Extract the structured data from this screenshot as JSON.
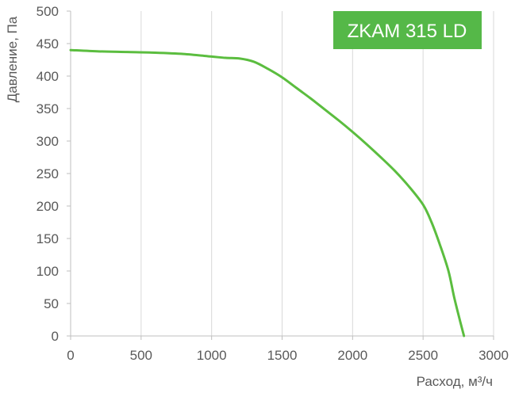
{
  "chart_data": {
    "type": "line",
    "title": "ZKAM 315 LD",
    "xlabel": "Расход, м³/ч",
    "ylabel": "Давление, Па",
    "xlim": [
      0,
      3000
    ],
    "ylim": [
      0,
      500
    ],
    "x_ticks": [
      "0",
      "500",
      "1000",
      "1500",
      "2000",
      "2500",
      "3000"
    ],
    "y_ticks": [
      "0",
      "50",
      "100",
      "150",
      "200",
      "250",
      "300",
      "350",
      "400",
      "450",
      "500"
    ],
    "grid": "vertical",
    "series": [
      {
        "color": "#5bbd3f",
        "points": [
          [
            0,
            440
          ],
          [
            200,
            438
          ],
          [
            400,
            437
          ],
          [
            600,
            436
          ],
          [
            800,
            434
          ],
          [
            1000,
            430
          ],
          [
            1100,
            428
          ],
          [
            1200,
            427
          ],
          [
            1300,
            422
          ],
          [
            1400,
            411
          ],
          [
            1500,
            398
          ],
          [
            1600,
            382
          ],
          [
            1700,
            366
          ],
          [
            1800,
            349
          ],
          [
            1900,
            332
          ],
          [
            2000,
            314
          ],
          [
            2100,
            295
          ],
          [
            2200,
            275
          ],
          [
            2300,
            254
          ],
          [
            2400,
            230
          ],
          [
            2500,
            202
          ],
          [
            2560,
            175
          ],
          [
            2620,
            140
          ],
          [
            2680,
            100
          ],
          [
            2720,
            60
          ],
          [
            2760,
            25
          ],
          [
            2790,
            0
          ]
        ]
      }
    ],
    "badge_color": "#55b848"
  }
}
